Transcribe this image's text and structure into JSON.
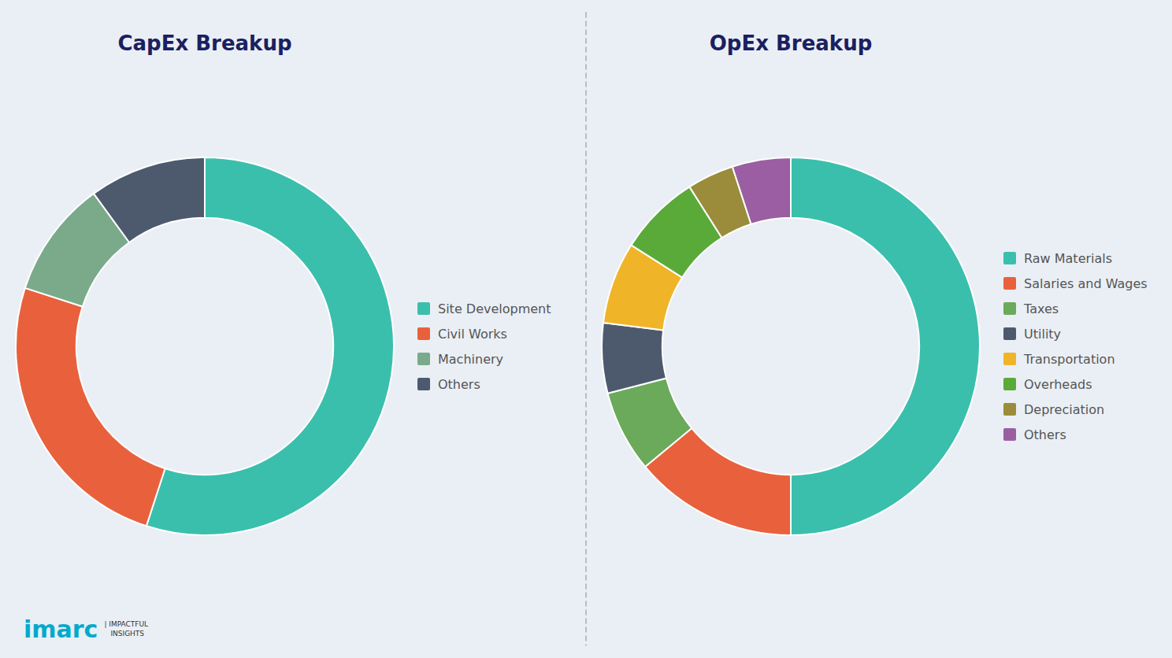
{
  "chart_data": [
    {
      "type": "donut",
      "title": "CapEx Breakup",
      "categories": [
        "Site Development",
        "Civil Works",
        "Machinery",
        "Others"
      ],
      "values": [
        55,
        25,
        10,
        10
      ],
      "colors": [
        "#3bbfad",
        "#e8613c",
        "#7aaa8a",
        "#4d5a6e"
      ],
      "legend": "right",
      "annotations": [
        "imarc",
        "| IMPACTFUL",
        "INSIGHTS"
      ]
    },
    {
      "type": "donut",
      "title": "OpEx Breakup",
      "categories": [
        "Raw Materials",
        "Salaries and Wages",
        "Taxes",
        "Utility",
        "Transportation",
        "Overheads",
        "Depreciation",
        "Others"
      ],
      "values": [
        50,
        14,
        7,
        6,
        7,
        7,
        4,
        5
      ],
      "colors": [
        "#3bbfad",
        "#e8613c",
        "#6aaa5a",
        "#4d5a6e",
        "#f0b429",
        "#5aaa3a",
        "#9a8c3a",
        "#9b5ea2"
      ],
      "legend": "right"
    }
  ]
}
